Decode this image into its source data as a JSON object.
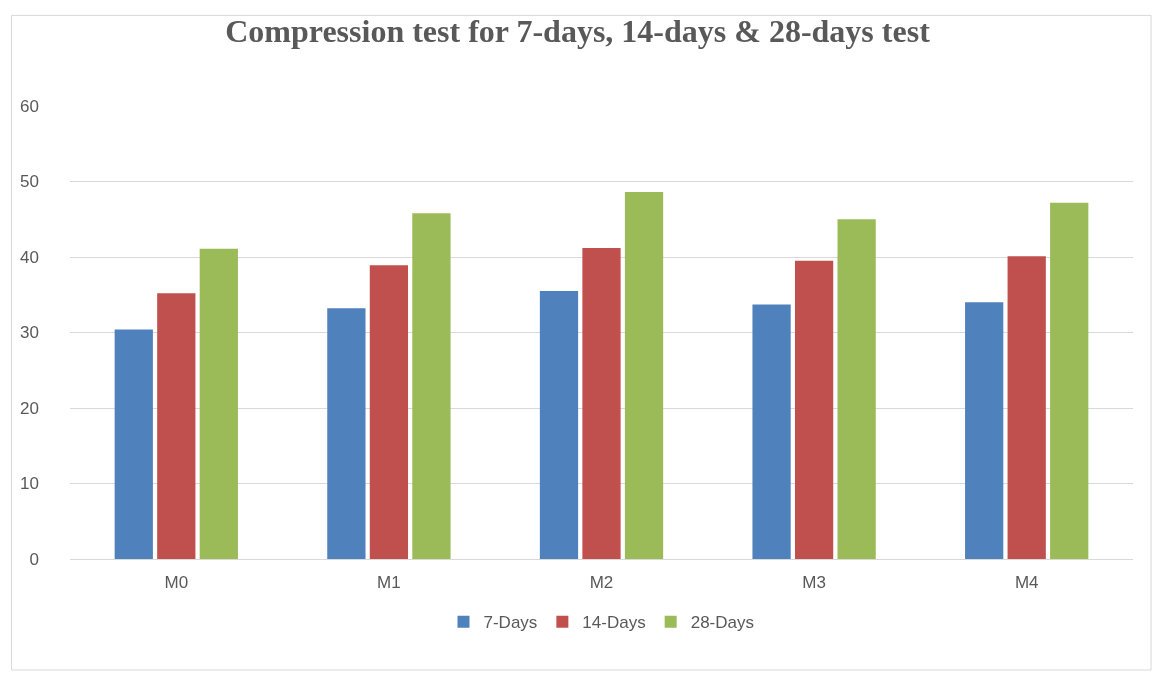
{
  "chart_data": {
    "type": "bar",
    "title": "Compression test for 7-days, 14-days & 28-days test",
    "categories": [
      "M0",
      "M1",
      "M2",
      "M3",
      "M4"
    ],
    "series": [
      {
        "name": "7-Days",
        "color": "#4f81bd",
        "values": [
          30.4,
          33.2,
          35.5,
          33.7,
          34.0
        ]
      },
      {
        "name": "14-Days",
        "color": "#c0504d",
        "values": [
          35.2,
          38.9,
          41.2,
          39.5,
          40.1
        ]
      },
      {
        "name": "28-Days",
        "color": "#9bbb59",
        "values": [
          41.1,
          45.8,
          48.6,
          45.0,
          47.2
        ]
      }
    ],
    "ylim": [
      0,
      60
    ],
    "yticks": [
      0,
      10,
      20,
      30,
      40,
      50,
      60
    ],
    "grid": "y",
    "legend": "bottom"
  }
}
